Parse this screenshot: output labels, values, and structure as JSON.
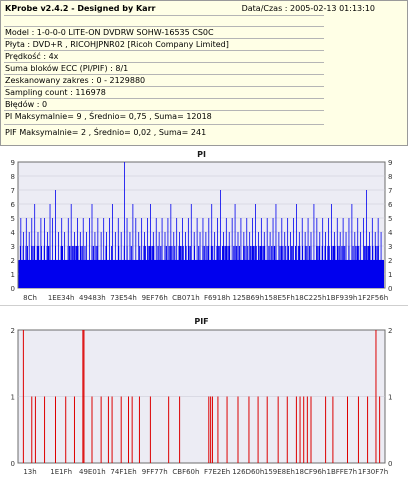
{
  "info": {
    "title": "KProbe v2.4.2 - Designed by Karr",
    "date": "Data/Czas : 2005-02-13 01:13:10",
    "lines": [
      "Model : 1-0-0-0 LITE-ON DVDRW SOHW-16535 CS0C",
      "Płyta : DVD+R , RICOHJPNR02 [Ricoh Company Limited]",
      "Prędkość : 4x",
      "Suma bloków ECC (PI/PIF) : 8/1",
      "Zeskanowany zakres : 0 - 2129880",
      "Sampling count : 116978",
      "Błędów : 0",
      "PI Maksymalnie= 9 , Średnio= 0,75 , Suma= 12018",
      "PIF Maksymalnie= 2 , Średnio= 0,02 , Suma= 241"
    ]
  },
  "chart_data": [
    {
      "type": "bar",
      "title": "PI",
      "ylim": [
        0,
        9
      ],
      "yticks": [
        0,
        1,
        2,
        3,
        4,
        5,
        6,
        7,
        8,
        9
      ],
      "xticklabels": [
        "8Ch",
        "1EE34h",
        "49483h",
        "73E54h",
        "9EF76h",
        "CB071h",
        "F6918h",
        "125B69h",
        "158E5Fh",
        "18C225h",
        "1BF939h",
        "1F2F56h"
      ],
      "baseline_level": 2,
      "common_level": 3,
      "spikes": [
        {
          "x": 0.005,
          "v": 5
        },
        {
          "x": 0.012,
          "v": 4
        },
        {
          "x": 0.02,
          "v": 5
        },
        {
          "x": 0.028,
          "v": 4
        },
        {
          "x": 0.035,
          "v": 5
        },
        {
          "x": 0.043,
          "v": 6
        },
        {
          "x": 0.052,
          "v": 4
        },
        {
          "x": 0.06,
          "v": 5
        },
        {
          "x": 0.07,
          "v": 5
        },
        {
          "x": 0.078,
          "v": 4
        },
        {
          "x": 0.085,
          "v": 6
        },
        {
          "x": 0.092,
          "v": 5
        },
        {
          "x": 0.1,
          "v": 7
        },
        {
          "x": 0.108,
          "v": 4
        },
        {
          "x": 0.117,
          "v": 5
        },
        {
          "x": 0.125,
          "v": 4
        },
        {
          "x": 0.135,
          "v": 5
        },
        {
          "x": 0.143,
          "v": 6
        },
        {
          "x": 0.152,
          "v": 4
        },
        {
          "x": 0.16,
          "v": 5
        },
        {
          "x": 0.168,
          "v": 4
        },
        {
          "x": 0.176,
          "v": 5
        },
        {
          "x": 0.185,
          "v": 4
        },
        {
          "x": 0.193,
          "v": 5
        },
        {
          "x": 0.2,
          "v": 6
        },
        {
          "x": 0.208,
          "v": 4
        },
        {
          "x": 0.216,
          "v": 5
        },
        {
          "x": 0.225,
          "v": 4
        },
        {
          "x": 0.232,
          "v": 5
        },
        {
          "x": 0.24,
          "v": 4
        },
        {
          "x": 0.248,
          "v": 5
        },
        {
          "x": 0.256,
          "v": 6
        },
        {
          "x": 0.264,
          "v": 4
        },
        {
          "x": 0.272,
          "v": 5
        },
        {
          "x": 0.28,
          "v": 4
        },
        {
          "x": 0.289,
          "v": 9
        },
        {
          "x": 0.296,
          "v": 5
        },
        {
          "x": 0.304,
          "v": 4
        },
        {
          "x": 0.312,
          "v": 6
        },
        {
          "x": 0.32,
          "v": 5
        },
        {
          "x": 0.328,
          "v": 4
        },
        {
          "x": 0.336,
          "v": 5
        },
        {
          "x": 0.344,
          "v": 4
        },
        {
          "x": 0.352,
          "v": 5
        },
        {
          "x": 0.36,
          "v": 6
        },
        {
          "x": 0.368,
          "v": 4
        },
        {
          "x": 0.376,
          "v": 5
        },
        {
          "x": 0.384,
          "v": 4
        },
        {
          "x": 0.392,
          "v": 5
        },
        {
          "x": 0.4,
          "v": 4
        },
        {
          "x": 0.408,
          "v": 5
        },
        {
          "x": 0.416,
          "v": 6
        },
        {
          "x": 0.424,
          "v": 4
        },
        {
          "x": 0.432,
          "v": 5
        },
        {
          "x": 0.44,
          "v": 4
        },
        {
          "x": 0.448,
          "v": 5
        },
        {
          "x": 0.456,
          "v": 4
        },
        {
          "x": 0.464,
          "v": 5
        },
        {
          "x": 0.472,
          "v": 6
        },
        {
          "x": 0.48,
          "v": 4
        },
        {
          "x": 0.488,
          "v": 5
        },
        {
          "x": 0.496,
          "v": 4
        },
        {
          "x": 0.504,
          "v": 5
        },
        {
          "x": 0.512,
          "v": 4
        },
        {
          "x": 0.52,
          "v": 5
        },
        {
          "x": 0.528,
          "v": 6
        },
        {
          "x": 0.536,
          "v": 4
        },
        {
          "x": 0.544,
          "v": 5
        },
        {
          "x": 0.552,
          "v": 7
        },
        {
          "x": 0.56,
          "v": 4
        },
        {
          "x": 0.568,
          "v": 5
        },
        {
          "x": 0.576,
          "v": 4
        },
        {
          "x": 0.584,
          "v": 5
        },
        {
          "x": 0.592,
          "v": 6
        },
        {
          "x": 0.6,
          "v": 4
        },
        {
          "x": 0.608,
          "v": 5
        },
        {
          "x": 0.616,
          "v": 4
        },
        {
          "x": 0.624,
          "v": 5
        },
        {
          "x": 0.632,
          "v": 4
        },
        {
          "x": 0.64,
          "v": 5
        },
        {
          "x": 0.648,
          "v": 6
        },
        {
          "x": 0.656,
          "v": 4
        },
        {
          "x": 0.664,
          "v": 5
        },
        {
          "x": 0.672,
          "v": 4
        },
        {
          "x": 0.68,
          "v": 5
        },
        {
          "x": 0.688,
          "v": 4
        },
        {
          "x": 0.696,
          "v": 5
        },
        {
          "x": 0.704,
          "v": 6
        },
        {
          "x": 0.712,
          "v": 4
        },
        {
          "x": 0.72,
          "v": 5
        },
        {
          "x": 0.728,
          "v": 4
        },
        {
          "x": 0.736,
          "v": 5
        },
        {
          "x": 0.744,
          "v": 4
        },
        {
          "x": 0.752,
          "v": 5
        },
        {
          "x": 0.76,
          "v": 6
        },
        {
          "x": 0.768,
          "v": 4
        },
        {
          "x": 0.776,
          "v": 5
        },
        {
          "x": 0.784,
          "v": 4
        },
        {
          "x": 0.792,
          "v": 5
        },
        {
          "x": 0.8,
          "v": 4
        },
        {
          "x": 0.808,
          "v": 6
        },
        {
          "x": 0.816,
          "v": 5
        },
        {
          "x": 0.824,
          "v": 4
        },
        {
          "x": 0.832,
          "v": 5
        },
        {
          "x": 0.84,
          "v": 4
        },
        {
          "x": 0.848,
          "v": 5
        },
        {
          "x": 0.856,
          "v": 6
        },
        {
          "x": 0.864,
          "v": 4
        },
        {
          "x": 0.872,
          "v": 5
        },
        {
          "x": 0.88,
          "v": 4
        },
        {
          "x": 0.888,
          "v": 5
        },
        {
          "x": 0.896,
          "v": 4
        },
        {
          "x": 0.904,
          "v": 5
        },
        {
          "x": 0.912,
          "v": 6
        },
        {
          "x": 0.92,
          "v": 4
        },
        {
          "x": 0.928,
          "v": 5
        },
        {
          "x": 0.936,
          "v": 4
        },
        {
          "x": 0.944,
          "v": 5
        },
        {
          "x": 0.952,
          "v": 7
        },
        {
          "x": 0.96,
          "v": 4
        },
        {
          "x": 0.968,
          "v": 5
        },
        {
          "x": 0.976,
          "v": 4
        },
        {
          "x": 0.984,
          "v": 5
        },
        {
          "x": 0.992,
          "v": 4
        }
      ],
      "color": "#0000ee"
    },
    {
      "type": "bar",
      "title": "PIF",
      "ylim": [
        0,
        2
      ],
      "yticks": [
        0,
        1,
        2
      ],
      "xticklabels": [
        "13h",
        "1E1Fh",
        "49E01h",
        "74F1Eh",
        "9FF77h",
        "CBF60h",
        "F7E2Eh",
        "126D60h",
        "159E8Eh",
        "18CF96h",
        "1BFFE7h",
        "1F30F7h"
      ],
      "bars": [
        {
          "x": 0.012,
          "v": 2
        },
        {
          "x": 0.035,
          "v": 1
        },
        {
          "x": 0.045,
          "v": 1
        },
        {
          "x": 0.07,
          "v": 1
        },
        {
          "x": 0.1,
          "v": 1
        },
        {
          "x": 0.128,
          "v": 1
        },
        {
          "x": 0.152,
          "v": 1
        },
        {
          "x": 0.175,
          "v": 2
        },
        {
          "x": 0.178,
          "v": 2
        },
        {
          "x": 0.2,
          "v": 1
        },
        {
          "x": 0.225,
          "v": 1
        },
        {
          "x": 0.245,
          "v": 1
        },
        {
          "x": 0.255,
          "v": 1
        },
        {
          "x": 0.28,
          "v": 1
        },
        {
          "x": 0.3,
          "v": 1
        },
        {
          "x": 0.31,
          "v": 1
        },
        {
          "x": 0.33,
          "v": 1
        },
        {
          "x": 0.36,
          "v": 1
        },
        {
          "x": 0.41,
          "v": 1
        },
        {
          "x": 0.44,
          "v": 1
        },
        {
          "x": 0.52,
          "v": 1
        },
        {
          "x": 0.525,
          "v": 1
        },
        {
          "x": 0.53,
          "v": 1
        },
        {
          "x": 0.545,
          "v": 1
        },
        {
          "x": 0.57,
          "v": 1
        },
        {
          "x": 0.6,
          "v": 1
        },
        {
          "x": 0.63,
          "v": 1
        },
        {
          "x": 0.655,
          "v": 1
        },
        {
          "x": 0.68,
          "v": 1
        },
        {
          "x": 0.71,
          "v": 1
        },
        {
          "x": 0.735,
          "v": 1
        },
        {
          "x": 0.76,
          "v": 1
        },
        {
          "x": 0.77,
          "v": 1
        },
        {
          "x": 0.78,
          "v": 1
        },
        {
          "x": 0.79,
          "v": 1
        },
        {
          "x": 0.8,
          "v": 1
        },
        {
          "x": 0.84,
          "v": 1
        },
        {
          "x": 0.86,
          "v": 1
        },
        {
          "x": 0.9,
          "v": 1
        },
        {
          "x": 0.93,
          "v": 1
        },
        {
          "x": 0.955,
          "v": 1
        },
        {
          "x": 0.978,
          "v": 2
        },
        {
          "x": 0.988,
          "v": 1
        }
      ],
      "color": "#dd0000"
    }
  ]
}
